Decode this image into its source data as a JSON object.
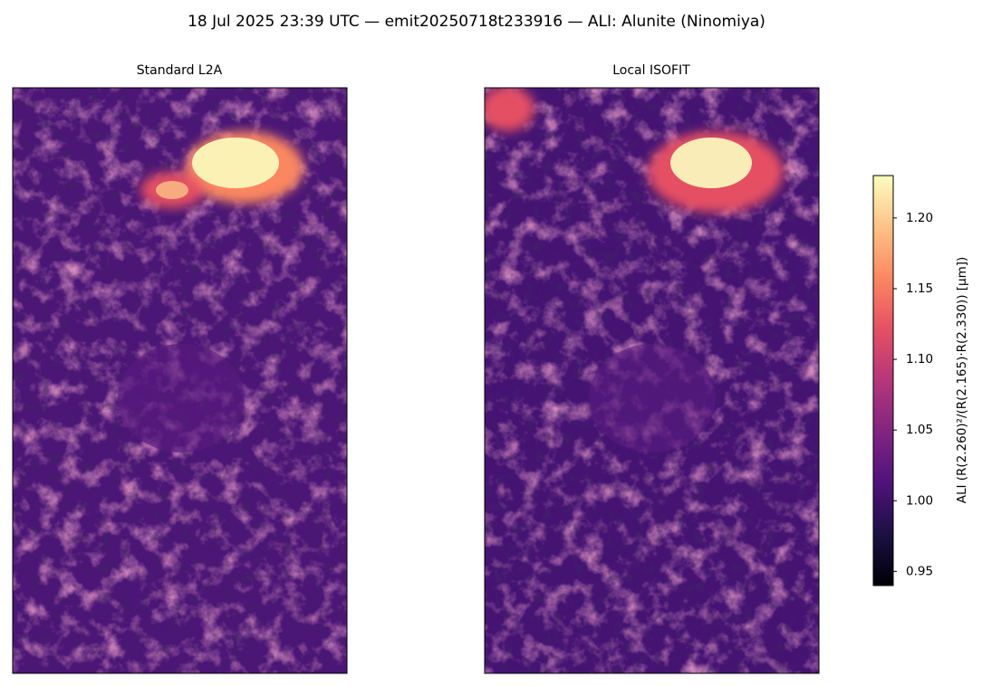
{
  "chart_data": {
    "type": "image",
    "title": "18 Jul 2025 23:39 UTC — emit20250718t233916 — ALI: Alunite (Ninomiya)",
    "panels": [
      {
        "title": "Standard L2A"
      },
      {
        "title": "Local ISOFIT"
      }
    ],
    "colorbar": {
      "label": "ALI  (R(2.260)²/(R(2.165)·R(2.330))  [μm])",
      "colormap": "magma",
      "lim": [
        0.94,
        1.23
      ],
      "ticks": [
        0.95,
        {
          "value": 1.0,
          "label": "1.00"
        },
        1.05,
        {
          "value": 1.1,
          "label": "1.10"
        },
        1.15,
        {
          "value": 1.2,
          "label": "1.20"
        }
      ]
    }
  }
}
